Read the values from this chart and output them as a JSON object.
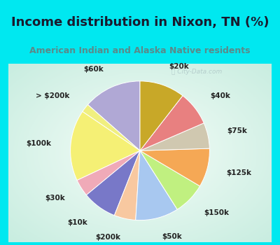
{
  "title": "Income distribution in Nixon, TN (%)",
  "subtitle": "American Indian and Alaska Native residents",
  "title_color": "#1a1a2e",
  "subtitle_color": "#5a8a8a",
  "bg_cyan": "#00e8f0",
  "bg_chart_outer": "#c8ede0",
  "bg_chart_inner": "#f0faf6",
  "watermark": "City-Data.com",
  "slices": [
    {
      "label": "$60k",
      "value": 13.5,
      "color": "#b0a8d5"
    },
    {
      "label": "> $200k",
      "value": 2.0,
      "color": "#f0ef80"
    },
    {
      "label": "$100k",
      "value": 16.5,
      "color": "#f5f075"
    },
    {
      "label": "$30k",
      "value": 4.0,
      "color": "#f0aab8"
    },
    {
      "label": "$10k",
      "value": 8.0,
      "color": "#7878c8"
    },
    {
      "label": "$200k",
      "value": 5.0,
      "color": "#f8c8a0"
    },
    {
      "label": "$50k",
      "value": 10.0,
      "color": "#a8c8f0"
    },
    {
      "label": "$150k",
      "value": 7.5,
      "color": "#c0f080"
    },
    {
      "label": "$125k",
      "value": 9.0,
      "color": "#f5a855"
    },
    {
      "label": "$75k",
      "value": 6.0,
      "color": "#d0c8b0"
    },
    {
      "label": "$40k",
      "value": 8.0,
      "color": "#e88080"
    },
    {
      "label": "$20k",
      "value": 10.5,
      "color": "#c8a828"
    }
  ],
  "label_fontsize": 7.5,
  "label_color": "#222222",
  "title_fontsize": 13,
  "subtitle_fontsize": 9
}
